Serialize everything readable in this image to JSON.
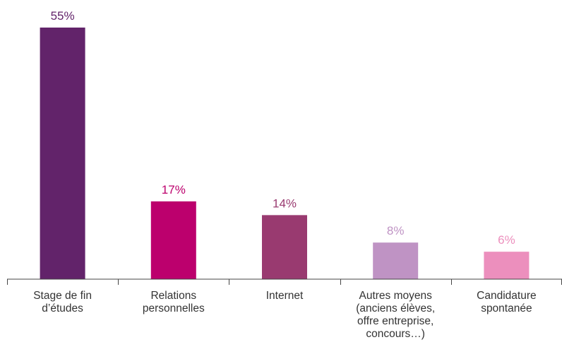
{
  "chart_data": {
    "type": "bar",
    "title": "",
    "xlabel": "",
    "ylabel": "",
    "ylim": [
      0,
      55
    ],
    "grid": false,
    "categories": [
      {
        "label_lines": [
          "Stage de fin",
          "d’études"
        ]
      },
      {
        "label_lines": [
          "Relations",
          "personnelles"
        ]
      },
      {
        "label_lines": [
          "Internet"
        ]
      },
      {
        "label_lines": [
          "Autres moyens",
          "(anciens élèves,",
          "offre entreprise,",
          "concours…)"
        ]
      },
      {
        "label_lines": [
          "Candidature",
          "spontanée"
        ]
      }
    ],
    "values": [
      55,
      17,
      14,
      8,
      6
    ],
    "data_labels": [
      "55%",
      "17%",
      "14%",
      "8%",
      "6%"
    ],
    "colors": [
      "#62236a",
      "#bc006d",
      "#993a70",
      "#bf93c4",
      "#ec8fbd"
    ],
    "label_colors": [
      "#62236a",
      "#bc006d",
      "#993a70",
      "#bf93c4",
      "#ec8fbd"
    ],
    "axis_color": "#444444"
  }
}
